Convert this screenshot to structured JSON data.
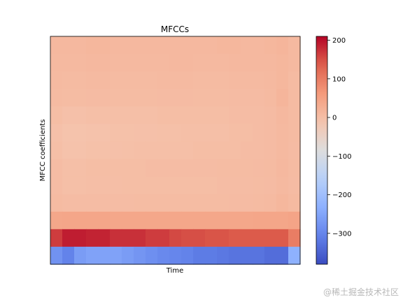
{
  "chart_data": {
    "type": "heatmap",
    "title": "MFCCs",
    "xlabel": "Time",
    "ylabel": "MFCC coefficients",
    "colormap": "coolwarm",
    "vmin": -380,
    "vmax": 210,
    "colorbar_ticks": [
      200,
      100,
      0,
      -100,
      -200,
      -300
    ],
    "colorbar_tick_labels": [
      "200",
      "100",
      "0",
      "−100",
      "−200",
      "−300"
    ],
    "n_coefficients": 13,
    "n_frames": 21,
    "row_order": "top-to-bottom, last row is coefficient 1",
    "values": [
      [
        10,
        10,
        10,
        12,
        12,
        10,
        10,
        10,
        10,
        10,
        10,
        10,
        10,
        10,
        12,
        12,
        10,
        10,
        12,
        15,
        8
      ],
      [
        8,
        8,
        8,
        10,
        10,
        8,
        8,
        8,
        8,
        8,
        10,
        10,
        8,
        8,
        8,
        10,
        10,
        10,
        10,
        12,
        8
      ],
      [
        6,
        5,
        5,
        6,
        6,
        5,
        5,
        5,
        5,
        6,
        6,
        6,
        5,
        5,
        5,
        6,
        6,
        6,
        8,
        12,
        5
      ],
      [
        5,
        3,
        3,
        4,
        4,
        3,
        3,
        3,
        3,
        4,
        4,
        4,
        3,
        3,
        3,
        4,
        4,
        4,
        6,
        15,
        5
      ],
      [
        0,
        -5,
        -5,
        -3,
        -3,
        -3,
        -3,
        -2,
        -2,
        0,
        0,
        0,
        0,
        0,
        0,
        2,
        2,
        2,
        4,
        10,
        5
      ],
      [
        -5,
        -10,
        -10,
        -8,
        -8,
        -6,
        -6,
        -5,
        -5,
        -4,
        -4,
        -3,
        -2,
        -2,
        -2,
        0,
        0,
        2,
        4,
        8,
        5
      ],
      [
        -2,
        -8,
        -8,
        -6,
        -6,
        -5,
        -4,
        -3,
        -3,
        -2,
        -2,
        -2,
        0,
        0,
        0,
        0,
        2,
        2,
        4,
        8,
        4
      ],
      [
        2,
        -2,
        -2,
        0,
        0,
        0,
        0,
        0,
        2,
        2,
        2,
        2,
        2,
        2,
        3,
        3,
        3,
        4,
        5,
        10,
        5
      ],
      [
        2,
        -2,
        -2,
        -1,
        -1,
        -1,
        0,
        0,
        0,
        0,
        0,
        0,
        0,
        0,
        2,
        2,
        2,
        3,
        4,
        8,
        4
      ],
      [
        5,
        2,
        2,
        2,
        2,
        2,
        2,
        3,
        3,
        3,
        3,
        3,
        3,
        3,
        3,
        4,
        4,
        5,
        6,
        12,
        6
      ],
      [
        40,
        42,
        42,
        42,
        42,
        40,
        40,
        40,
        40,
        40,
        40,
        40,
        40,
        40,
        40,
        40,
        40,
        42,
        42,
        42,
        45
      ],
      [
        165,
        190,
        190,
        185,
        185,
        175,
        175,
        175,
        165,
        165,
        155,
        150,
        150,
        145,
        145,
        140,
        140,
        140,
        140,
        140,
        100
      ],
      [
        -280,
        -305,
        -265,
        -255,
        -255,
        -255,
        -265,
        -275,
        -285,
        -295,
        -300,
        -305,
        -315,
        -315,
        -320,
        -325,
        -325,
        -325,
        -335,
        -335,
        -230
      ]
    ]
  },
  "watermark": "@稀土掘金技术社区"
}
